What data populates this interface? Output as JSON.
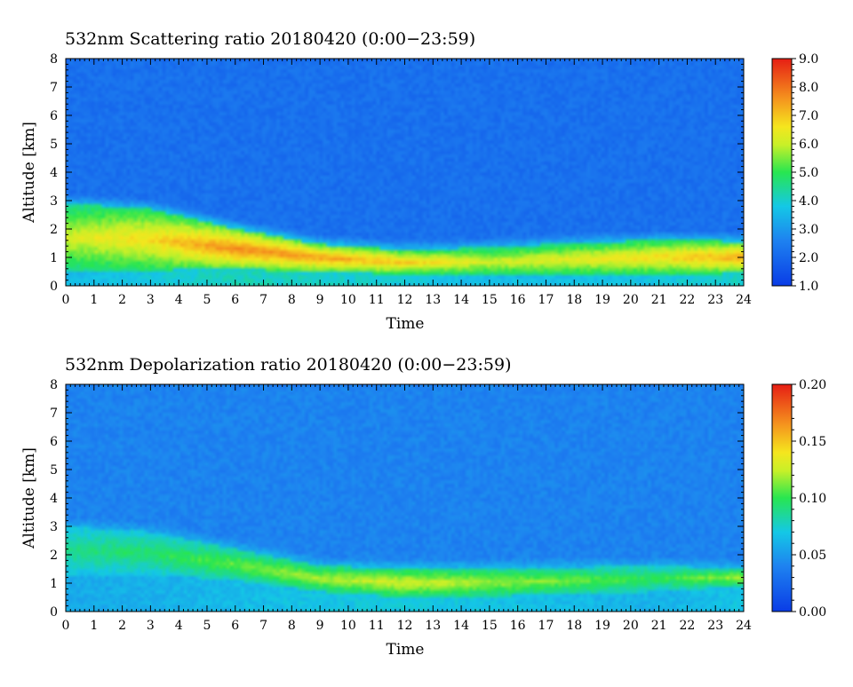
{
  "chart_data": [
    {
      "type": "heatmap",
      "title": "532nm Scattering ratio  20180420 (0:00−23:59)",
      "xlabel": "Time",
      "ylabel": "Altitude [km]",
      "xlim": [
        0,
        24
      ],
      "ylim": [
        0,
        8
      ],
      "x_ticks": [
        "0",
        "1",
        "2",
        "3",
        "4",
        "5",
        "6",
        "7",
        "8",
        "9",
        "10",
        "11",
        "12",
        "13",
        "14",
        "15",
        "16",
        "17",
        "18",
        "19",
        "20",
        "21",
        "22",
        "23",
        "24"
      ],
      "y_ticks": [
        "0",
        "1",
        "2",
        "3",
        "4",
        "5",
        "6",
        "7",
        "8"
      ],
      "colorbar": {
        "range": [
          1.0,
          9.0
        ],
        "ticks": [
          "1.0",
          "2.0",
          "3.0",
          "4.0",
          "5.0",
          "6.0",
          "7.0",
          "8.0",
          "9.0"
        ]
      },
      "layers": [
        {
          "time": [
            0,
            3,
            6,
            9,
            12,
            15,
            18,
            21,
            24
          ],
          "top_km": [
            2.9,
            2.7,
            2.0,
            1.45,
            1.25,
            1.35,
            1.5,
            1.6,
            1.55
          ],
          "bottom_km": [
            0.5,
            0.55,
            0.6,
            0.5,
            0.4,
            0.35,
            0.35,
            0.4,
            0.45
          ],
          "peak_value": [
            6.2,
            6.8,
            7.8,
            7.5,
            7.0,
            6.2,
            6.4,
            6.8,
            7.4
          ]
        }
      ],
      "background_value": 2.2
    },
    {
      "type": "heatmap",
      "title": "532nm Depolarization ratio  20180420 (0:00−23:59)",
      "xlabel": "Time",
      "ylabel": "Altitude [km]",
      "xlim": [
        0,
        24
      ],
      "ylim": [
        0,
        8
      ],
      "x_ticks": [
        "0",
        "1",
        "2",
        "3",
        "4",
        "5",
        "6",
        "7",
        "8",
        "9",
        "10",
        "11",
        "12",
        "13",
        "14",
        "15",
        "16",
        "17",
        "18",
        "19",
        "20",
        "21",
        "22",
        "23",
        "24"
      ],
      "y_ticks": [
        "0",
        "1",
        "2",
        "3",
        "4",
        "5",
        "6",
        "7",
        "8"
      ],
      "colorbar": {
        "range": [
          0.0,
          0.2
        ],
        "ticks": [
          "0.00",
          "0.05",
          "0.10",
          "0.15",
          "0.20"
        ]
      },
      "layers": [
        {
          "time": [
            0,
            3,
            6,
            9,
            12,
            15,
            18,
            21,
            24
          ],
          "top_km": [
            3.0,
            2.8,
            2.2,
            1.6,
            1.5,
            1.5,
            1.55,
            1.6,
            1.5
          ],
          "bottom_km": [
            1.3,
            1.3,
            1.1,
            0.7,
            0.5,
            0.55,
            0.6,
            0.7,
            0.9
          ],
          "peak_value": [
            0.09,
            0.095,
            0.11,
            0.12,
            0.13,
            0.12,
            0.11,
            0.1,
            0.12
          ]
        }
      ],
      "background_value": 0.04
    }
  ]
}
